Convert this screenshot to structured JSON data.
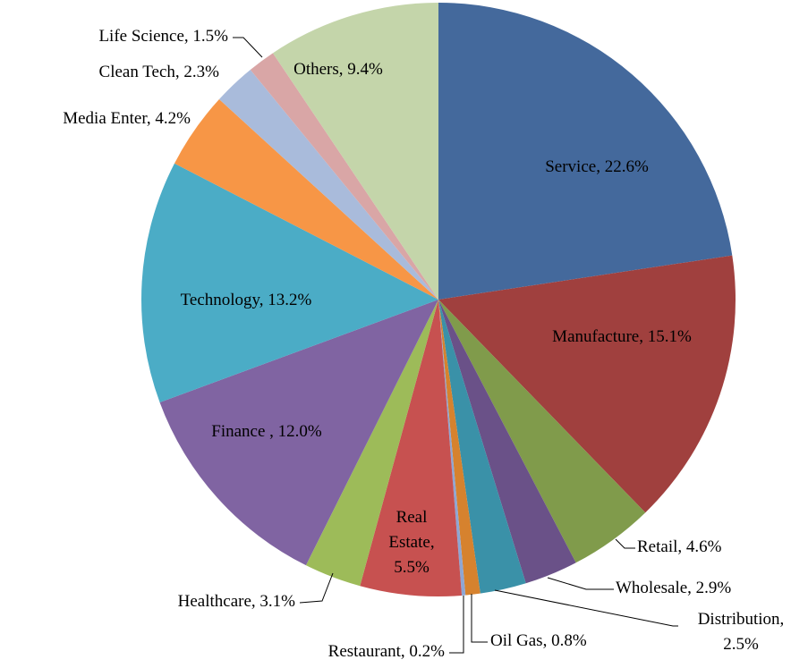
{
  "chart_data": {
    "type": "pie",
    "values": [
      22.6,
      15.1,
      4.6,
      2.9,
      2.5,
      0.8,
      0.2,
      5.5,
      3.1,
      12.0,
      13.2,
      4.2,
      2.3,
      1.5,
      9.4
    ],
    "value_labels": [
      "Service, 22.6%",
      "Manufacture, 15.1%",
      "Retail, 4.6%",
      "Wholesale, 2.9%",
      "Distribution,\n2.5%",
      "Oil Gas, 0.8%",
      "Restaurant, 0.2%",
      "Real\nEstate,\n5.5%",
      "Healthcare, 3.1%",
      "Finance , 12.0%",
      "Technology, 13.2%",
      "Media Enter, 4.2%",
      "Clean Tech, 2.3%",
      "Life Science, 1.5%",
      "Others, 9.4%"
    ],
    "colors": [
      "#44699c",
      "#a0403e",
      "#809b4b",
      "#6a5188",
      "#3a91a8",
      "#d6822e",
      "#8ea6d3",
      "#c75150",
      "#9dbb59",
      "#8064a2",
      "#4bacc6",
      "#f79646",
      "#a9bbdb",
      "#d9a6a6",
      "#c4d5aa"
    ]
  }
}
